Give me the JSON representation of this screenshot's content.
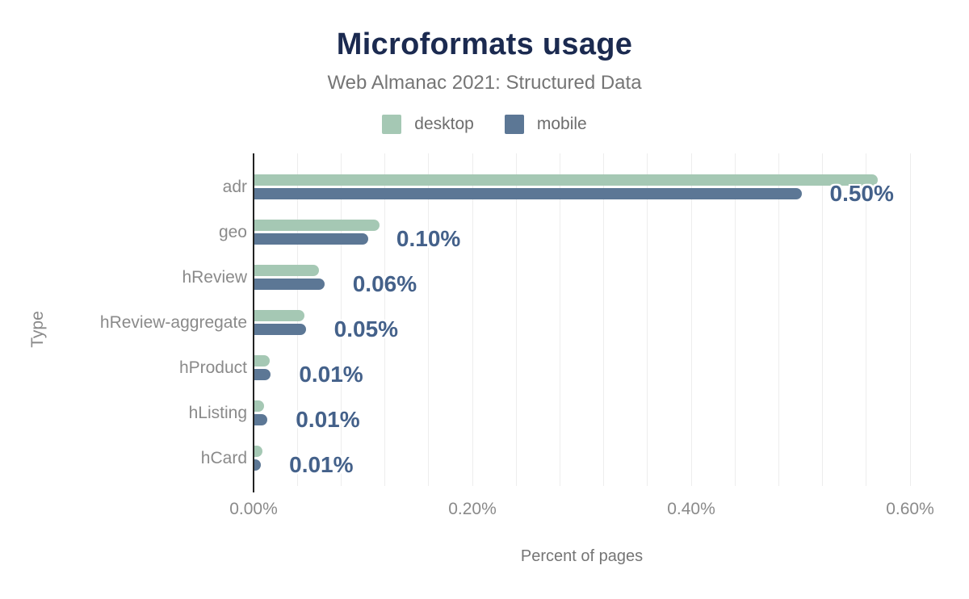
{
  "header": {
    "title": "Microformats usage",
    "subtitle": "Web Almanac 2021: Structured Data"
  },
  "legend": {
    "items": [
      {
        "label": "desktop",
        "color": "#a5c8b4"
      },
      {
        "label": "mobile",
        "color": "#5c7795"
      }
    ]
  },
  "axes": {
    "x_title": "Percent of pages",
    "y_title": "Type",
    "x_ticks": [
      {
        "label": "0.00%",
        "value": 0.0
      },
      {
        "label": "0.20%",
        "value": 0.2
      },
      {
        "label": "0.40%",
        "value": 0.4
      },
      {
        "label": "0.60%",
        "value": 0.6
      }
    ],
    "gridline_step": 0.04
  },
  "chart_data": {
    "type": "bar",
    "orientation": "horizontal",
    "title": "Microformats usage",
    "subtitle": "Web Almanac 2021: Structured Data",
    "xlabel": "Percent of pages",
    "ylabel": "Type",
    "xlim": [
      0,
      0.6
    ],
    "x_tick_labels": [
      "0.00%",
      "0.20%",
      "0.40%",
      "0.60%"
    ],
    "grid": "vertical, minor step 0.04%",
    "legend_position": "top-center",
    "categories": [
      "adr",
      "geo",
      "hReview",
      "hReview-aggregate",
      "hProduct",
      "hListing",
      "hCard"
    ],
    "series": [
      {
        "name": "desktop",
        "color": "#a5c8b4",
        "values": [
          0.57,
          0.114,
          0.059,
          0.046,
          0.014,
          0.009,
          0.007
        ]
      },
      {
        "name": "mobile",
        "color": "#5c7795",
        "values": [
          0.5,
          0.104,
          0.064,
          0.047,
          0.015,
          0.012,
          0.006
        ]
      }
    ],
    "value_labels": [
      "0.50%",
      "0.10%",
      "0.06%",
      "0.05%",
      "0.01%",
      "0.01%",
      "0.01%"
    ]
  },
  "colors": {
    "title": "#1b2a50",
    "subtitle": "#757575",
    "legend_text": "#6d6d6d",
    "category_label": "#8a8a8a",
    "tick_label": "#8a8a8a",
    "value_label": "#44618a",
    "axis_line": "#222222",
    "gridline": "#ededed",
    "background": "#ffffff"
  }
}
